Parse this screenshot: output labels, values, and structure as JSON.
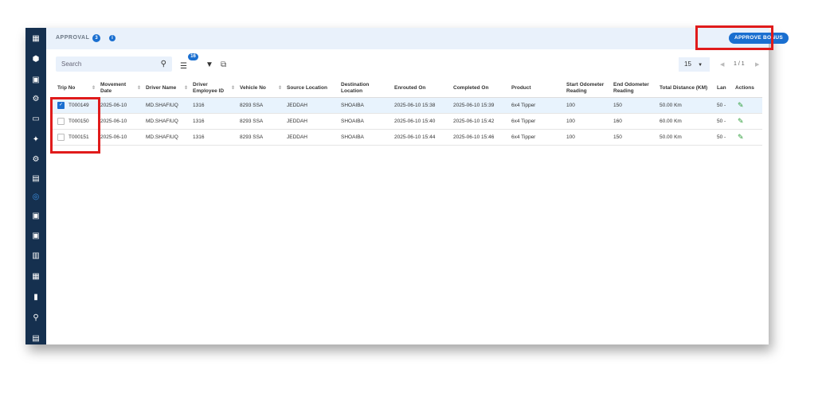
{
  "header": {
    "title": "APPROVAL",
    "count": "3",
    "info_icon": "info-icon",
    "approve_label": "APPROVE BONUS"
  },
  "toolbar": {
    "search_placeholder": "Search",
    "column_count": "16",
    "page_size": "15",
    "page_info": "1 / 1"
  },
  "colors": {
    "sidebar": "#15304f",
    "accent": "#1a6fd0",
    "highlight": "#e01b1b",
    "edit": "#2e9e3a"
  },
  "sidebar": {
    "icons": [
      "dashboard-icon",
      "cube-add-icon",
      "bus-settings-icon",
      "nodes-icon",
      "money-icon",
      "sparkle-icon",
      "nodes-icon-2",
      "card-icon",
      "check-circle-icon",
      "truck-settings-icon",
      "bus-icon",
      "truck-icon",
      "building-icon",
      "book-icon",
      "route-icon",
      "report-icon"
    ]
  },
  "table": {
    "columns": [
      "Trip No",
      "Movement Date",
      "Driver Name",
      "Driver Employee ID",
      "Vehicle No",
      "Source Location",
      "Destination Location",
      "Enrouted On",
      "Completed On",
      "Product",
      "Start Odometer Reading",
      "End Odometer Reading",
      "Total Distance (KM)",
      "Lan",
      "Actions"
    ],
    "rows": [
      {
        "selected": true,
        "cells": [
          "T000149",
          "2025-06-10",
          "MD.SHAFIUQ",
          "1316",
          "8293 SSA",
          "JEDDAH",
          "SHOAIBA",
          "2025-06-10 15:38",
          "2025-06-10 15:39",
          "6x4 Tipper",
          "100",
          "150",
          "50.00 Km",
          "50 -"
        ]
      },
      {
        "selected": false,
        "cells": [
          "T000150",
          "2025-06-10",
          "MD.SHAFIUQ",
          "1316",
          "8293 SSA",
          "JEDDAH",
          "SHOAIBA",
          "2025-06-10 15:40",
          "2025-06-10 15:42",
          "6x4 Tipper",
          "100",
          "160",
          "60.00 Km",
          "50 -"
        ]
      },
      {
        "selected": false,
        "cells": [
          "T000151",
          "2025-06-10",
          "MD.SHAFIUQ",
          "1316",
          "8293 SSA",
          "JEDDAH",
          "SHOAIBA",
          "2025-06-10 15:44",
          "2025-06-10 15:46",
          "6x4 Tipper",
          "100",
          "150",
          "50.00 Km",
          "50 -"
        ]
      }
    ]
  }
}
